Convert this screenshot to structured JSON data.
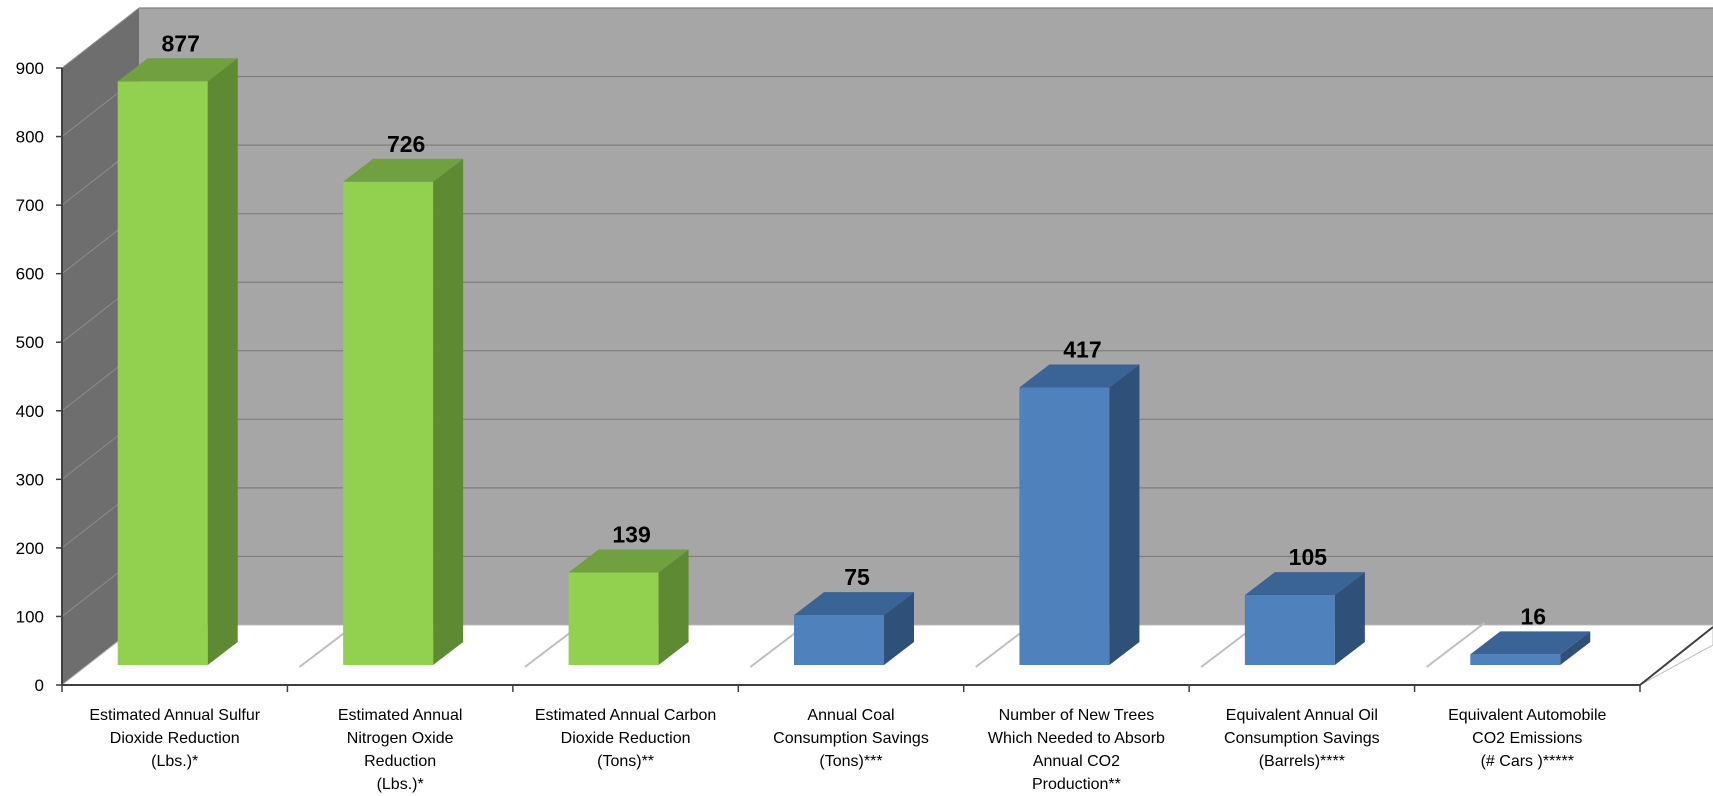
{
  "chart_data": {
    "type": "bar",
    "title": "",
    "xlabel": "",
    "ylabel": "",
    "ylim": [
      0,
      900
    ],
    "yticks": [
      0,
      100,
      200,
      300,
      400,
      500,
      600,
      700,
      800,
      900
    ],
    "grid": true,
    "style": "3d-column",
    "categories": [
      [
        "Estimated Annual Sulfur",
        "Dioxide Reduction",
        "(Lbs.)*"
      ],
      [
        "Estimated Annual",
        "Nitrogen Oxide",
        "Reduction",
        "(Lbs.)*"
      ],
      [
        "Estimated Annual Carbon",
        "Dioxide Reduction",
        "(Tons)**"
      ],
      [
        "Annual Coal",
        "Consumption Savings",
        "(Tons)***"
      ],
      [
        "Number of New Trees",
        "Which Needed to Absorb",
        "Annual CO2",
        "Production**"
      ],
      [
        "Equivalent Annual Oil",
        "Consumption Savings",
        "(Barrels)****"
      ],
      [
        "Equivalent  Automobile",
        "CO2 Emissions",
        "(# Cars )*****"
      ]
    ],
    "values": [
      877,
      726,
      139,
      75,
      417,
      105,
      16
    ],
    "data_labels": [
      "877",
      "726",
      "139",
      "75",
      "417",
      "105",
      "16"
    ],
    "bar_colors": [
      "green",
      "green",
      "green",
      "blue",
      "blue",
      "blue",
      "blue"
    ]
  },
  "colors": {
    "green_front": "#92d050",
    "green_side": "#5e8a34",
    "green_top": "#70a03f",
    "blue_front": "#4f81bd",
    "blue_side": "#2f5078",
    "blue_top": "#3a6396",
    "back_wall": "#a6a6a6",
    "side_wall": "#6e6e6e",
    "floor": "#ffffff",
    "grid": "#7f7f7f"
  }
}
